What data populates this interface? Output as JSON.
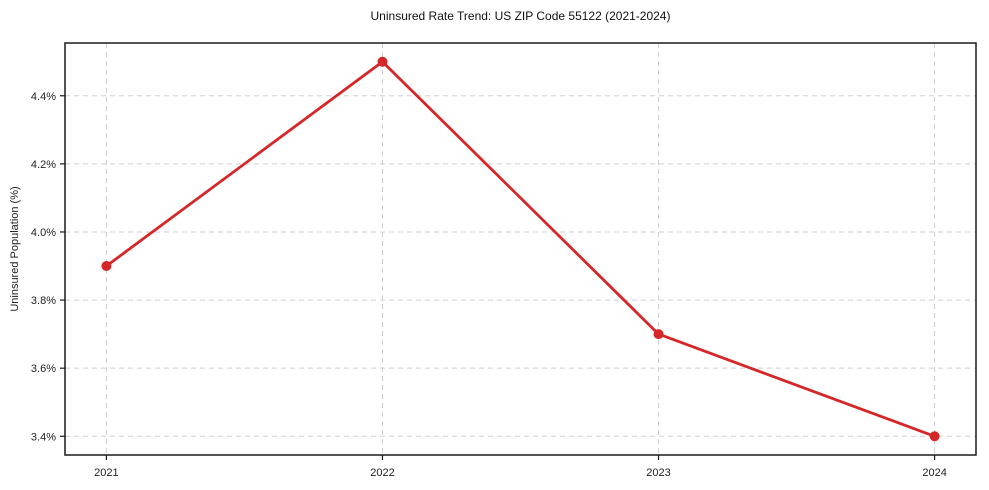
{
  "chart_data": {
    "type": "line",
    "title": "Uninsured Rate Trend: US ZIP Code 55122 (2021-2024)",
    "xlabel": "",
    "ylabel": "Uninsured Population (%)",
    "categories": [
      "2021",
      "2022",
      "2023",
      "2024"
    ],
    "x": [
      2021,
      2022,
      2023,
      2024
    ],
    "series": [
      {
        "name": "Uninsured Rate",
        "values": [
          3.9,
          4.5,
          3.7,
          3.4
        ],
        "value_labels": [
          "3.9%",
          "4.5%",
          "3.7%",
          "3.4%"
        ],
        "color": "#d62728",
        "marker": "circle"
      }
    ],
    "xlim": [
      2020.85,
      2024.15
    ],
    "ylim": [
      3.345,
      4.555
    ],
    "yticks": [
      3.4,
      3.6,
      3.8,
      4.0,
      4.2,
      4.4
    ],
    "ytick_labels": [
      "3.4%",
      "3.6%",
      "3.8%",
      "4.0%",
      "4.2%",
      "4.4%"
    ],
    "grid": "dashed",
    "grid_color": "#cfcfcf",
    "frame_color": "#1a1a1a",
    "legend_position": "none"
  }
}
